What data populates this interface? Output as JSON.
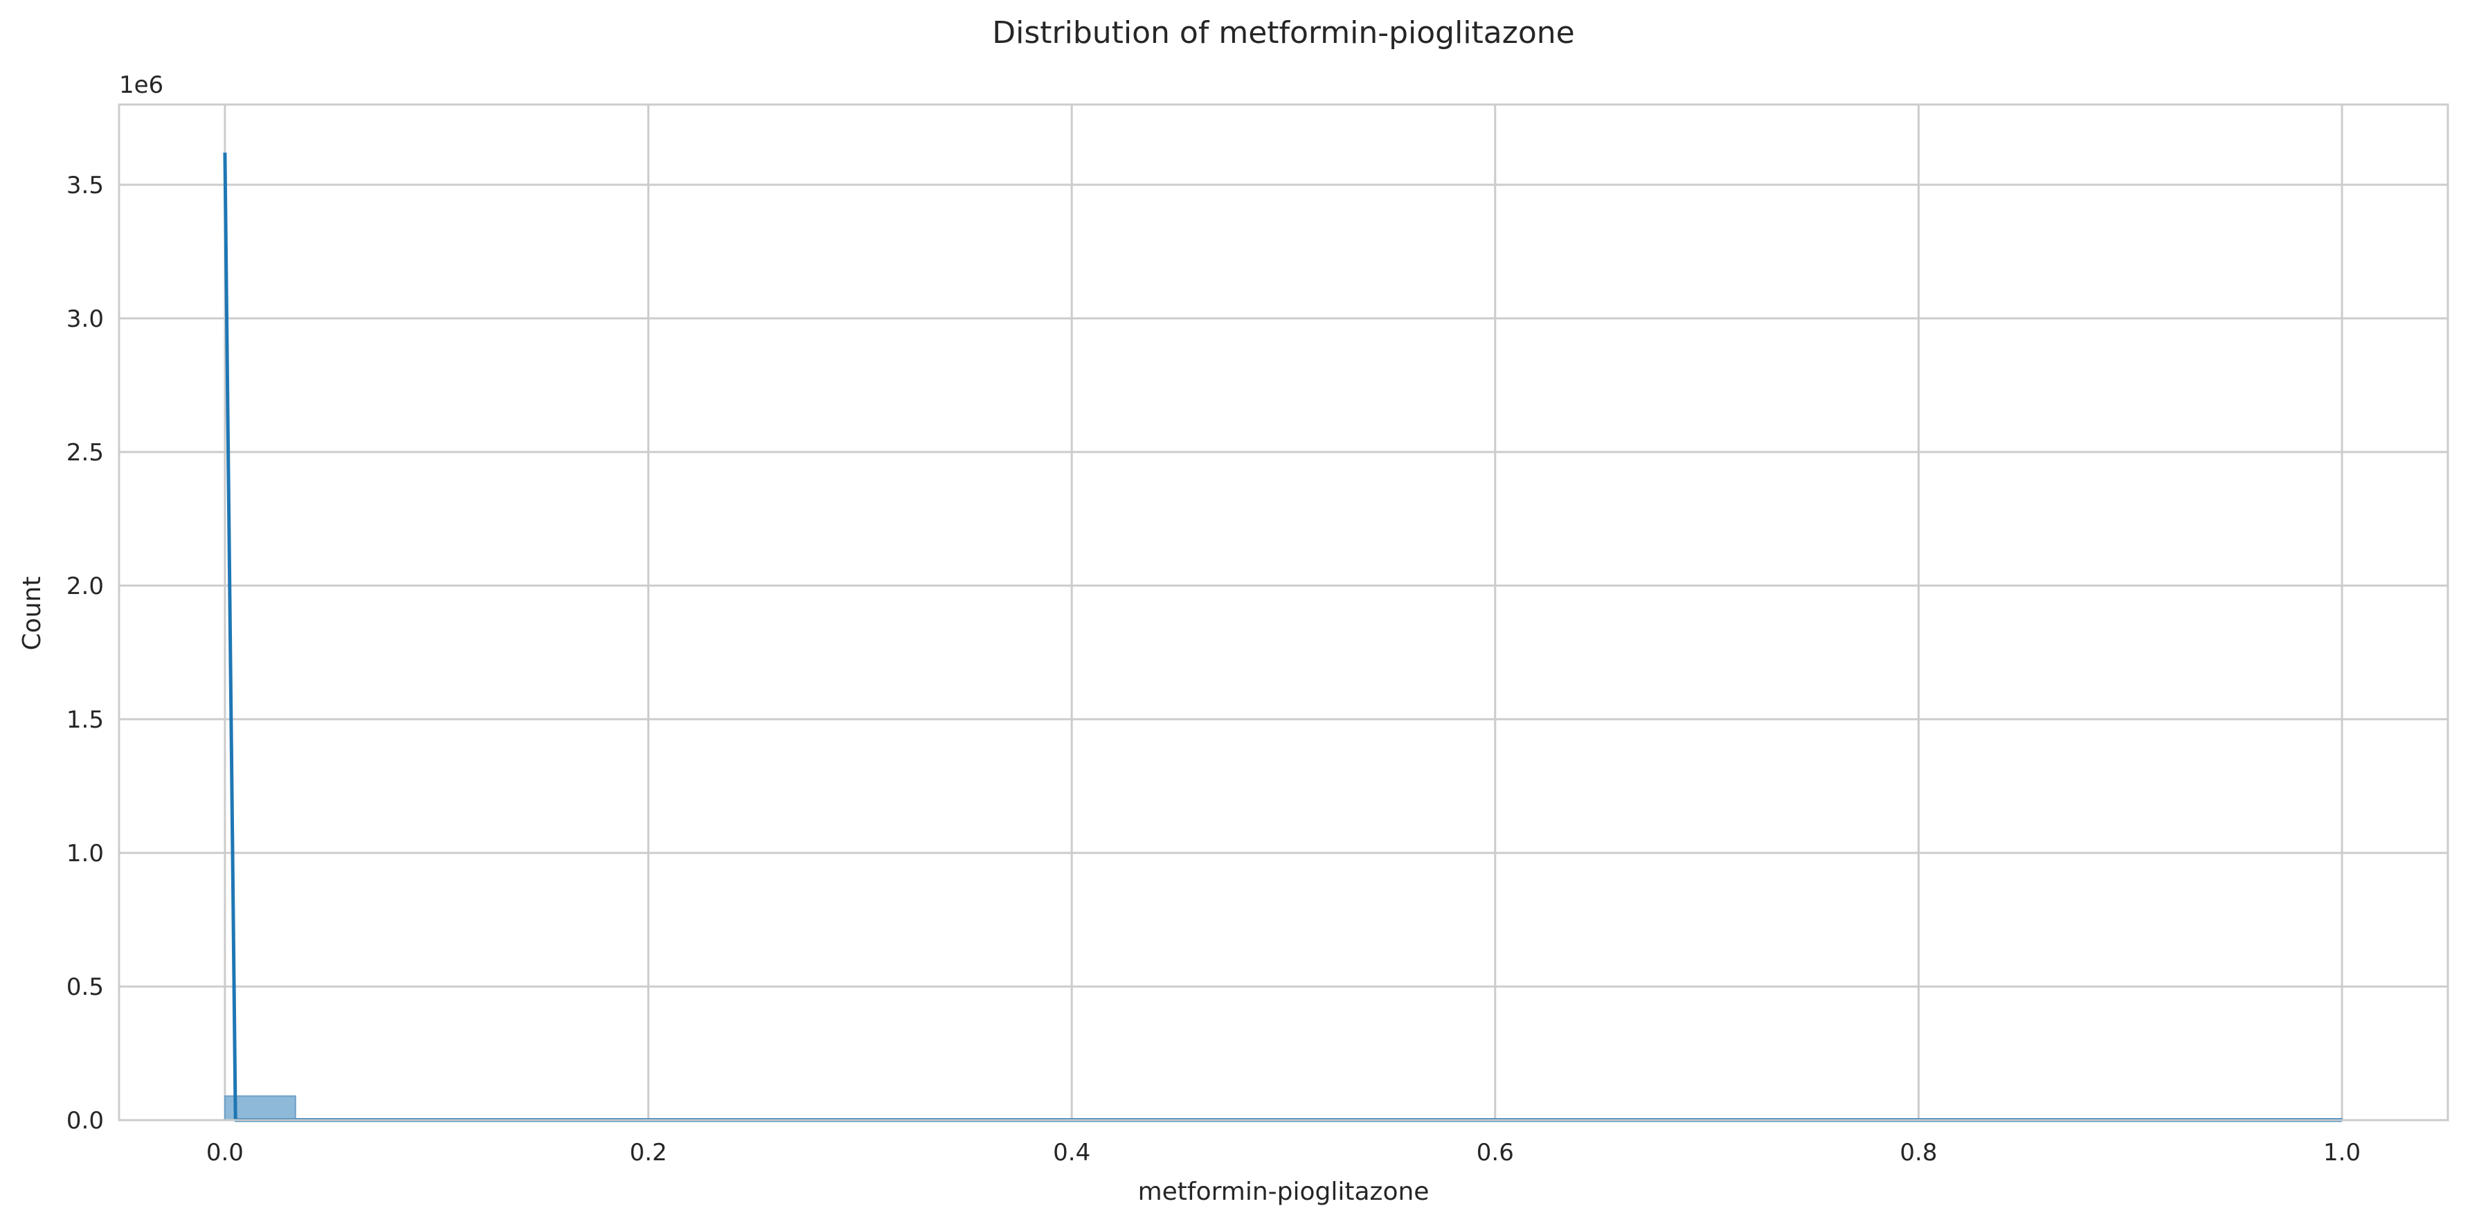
{
  "chart_data": {
    "type": "histogram",
    "title": "Distribution of metformin-pioglitazone",
    "xlabel": "metformin-pioglitazone",
    "ylabel": "Count",
    "y_offset_label": "1e6",
    "xlim": [
      -0.05,
      1.05
    ],
    "ylim": [
      0,
      3800000
    ],
    "x_ticks": [
      0.0,
      0.2,
      0.4,
      0.6,
      0.8,
      1.0
    ],
    "x_tick_labels": [
      "0.0",
      "0.2",
      "0.4",
      "0.6",
      "0.8",
      "1.0"
    ],
    "y_ticks": [
      0,
      500000,
      1000000,
      1500000,
      2000000,
      2500000,
      3000000,
      3500000
    ],
    "y_tick_labels": [
      "0.0",
      "0.5",
      "1.0",
      "1.5",
      "2.0",
      "2.5",
      "3.0",
      "3.5"
    ],
    "grid": true,
    "bins": [
      {
        "x0": 0.0,
        "x1": 0.0333,
        "count": 90000
      },
      {
        "x0": 0.0333,
        "x1": 1.0,
        "count": 0
      }
    ],
    "kde": {
      "x": [
        0.0,
        0.005,
        0.01,
        0.05,
        0.2,
        0.4,
        0.6,
        0.8,
        1.0
      ],
      "y": [
        3620000,
        0,
        0,
        0,
        0,
        0,
        0,
        0,
        0
      ]
    },
    "colors": {
      "bar_fill": "#8fb9d8",
      "bar_stroke": "#6e9fc6",
      "kde_line": "#1f77b4"
    }
  }
}
